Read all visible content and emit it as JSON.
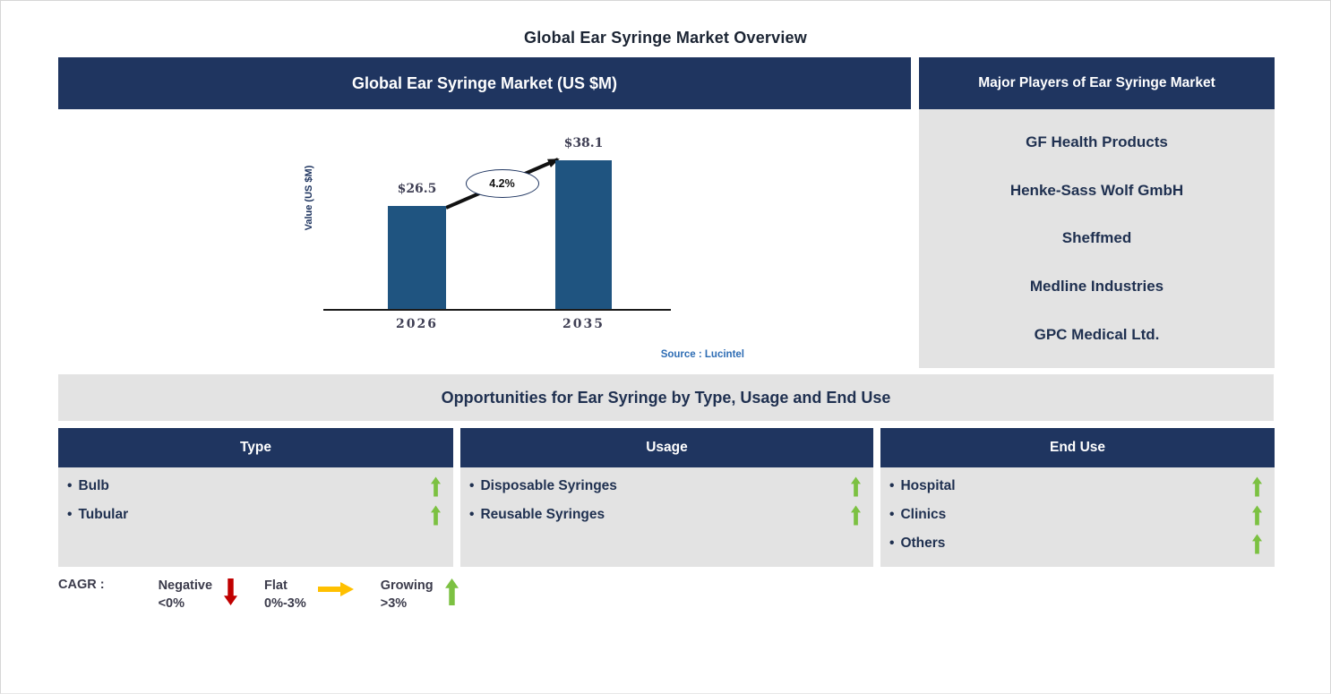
{
  "page": {
    "title": "Global Ear Syringe Market Overview"
  },
  "chart_panel": {
    "header": "Global Ear Syringe Market (US $M)",
    "source": "Source : Lucintel"
  },
  "chart_data": {
    "type": "bar",
    "title": "Global Ear Syringe Market (US $M)",
    "categories": [
      "2026",
      "2035"
    ],
    "values": [
      26.5,
      38.1
    ],
    "value_labels": [
      "$26.5",
      "$38.1"
    ],
    "ylabel": "Value (US $M)",
    "xlabel": "",
    "ylim": [
      0,
      40
    ],
    "grid": "off",
    "cagr_label": "4.2%",
    "annotation": "CAGR 4.2% growth arrow from 2026 bar to 2035 bar"
  },
  "players_panel": {
    "header": "Major Players of Ear Syringe Market",
    "companies": [
      "GF Health Products",
      "Henke-Sass Wolf GmbH",
      "Sheffmed",
      "Medline Industries",
      "GPC Medical Ltd."
    ]
  },
  "opportunities": {
    "header": "Opportunities for Ear Syringe by Type, Usage and End Use",
    "columns": [
      {
        "header": "Type",
        "items": [
          {
            "label": "Bulb",
            "trend": "growing"
          },
          {
            "label": "Tubular",
            "trend": "growing"
          }
        ]
      },
      {
        "header": "Usage",
        "items": [
          {
            "label": "Disposable Syringes",
            "trend": "growing"
          },
          {
            "label": "Reusable Syringes",
            "trend": "growing"
          }
        ]
      },
      {
        "header": "End Use",
        "items": [
          {
            "label": "Hospital",
            "trend": "growing"
          },
          {
            "label": "Clinics",
            "trend": "growing"
          },
          {
            "label": "Others",
            "trend": "growing"
          }
        ]
      }
    ]
  },
  "legend": {
    "label": "CAGR :",
    "entries": [
      {
        "name": "Negative",
        "range": "<0%",
        "arrow": "down-arrow-icon"
      },
      {
        "name": "Flat",
        "range": "0%-3%",
        "arrow": "right-arrow-icon"
      },
      {
        "name": "Growing",
        "range": ">3%",
        "arrow": "up-arrow-icon"
      }
    ]
  },
  "ui": {
    "bullet": "•"
  },
  "colors": {
    "navy": "#1F3560",
    "panel_gray": "#E3E3E3",
    "bar": "#1F5480",
    "green": "#7CC142",
    "red": "#C00000",
    "yellow": "#FFC000",
    "text_dark": "#1F3050",
    "chart_text": "#3F3F54",
    "source_blue": "#2E6DB4",
    "legend_text": "#3B3B4B",
    "title_text": "#1B2433",
    "axis": "#1A1A1A"
  }
}
